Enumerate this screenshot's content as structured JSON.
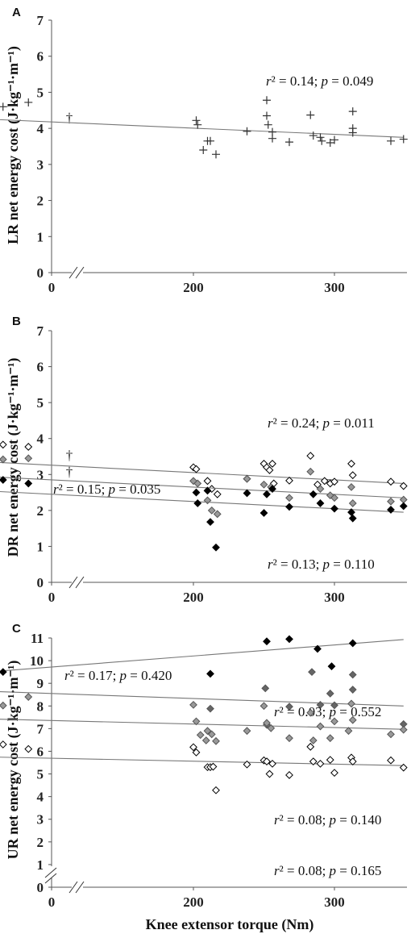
{
  "chart_data": [
    {
      "panel": "A",
      "type": "scatter",
      "ylabel": "LR net energy cost (J·kg⁻¹·m⁻¹)",
      "xlabel": "",
      "xlim": [
        0,
        350
      ],
      "ylim": [
        0,
        7
      ],
      "x_ticks": [
        "0",
        "200",
        "300"
      ],
      "y_ticks": [
        "0",
        "1",
        "2",
        "3",
        "4",
        "5",
        "6",
        "7"
      ],
      "outlier_marker": "†",
      "outlier_y": [
        4.3
      ],
      "series": [
        {
          "marker": "plus",
          "color": "#333333",
          "points": [
            [
              40,
              4.13
            ],
            [
              55,
              4.57
            ],
            [
              57,
              4.28
            ],
            [
              65,
              4.6
            ],
            [
              83,
              4.72
            ],
            [
              202,
              4.22
            ],
            [
              203,
              4.1
            ],
            [
              207,
              3.4
            ],
            [
              210,
              3.65
            ],
            [
              212,
              3.65
            ],
            [
              216,
              3.28
            ],
            [
              238,
              3.92
            ],
            [
              252,
              4.78
            ],
            [
              252,
              4.35
            ],
            [
              253,
              4.1
            ],
            [
              256,
              3.9
            ],
            [
              256,
              3.72
            ],
            [
              268,
              3.62
            ],
            [
              283,
              4.37
            ],
            [
              285,
              3.8
            ],
            [
              290,
              3.75
            ],
            [
              291,
              3.65
            ],
            [
              297,
              3.6
            ],
            [
              300,
              3.68
            ],
            [
              313,
              4.47
            ],
            [
              313,
              4.0
            ],
            [
              313,
              3.88
            ],
            [
              340,
              3.65
            ],
            [
              349,
              3.7
            ]
          ],
          "trend": [
            [
              40,
              4.28
            ],
            [
              349,
              3.75
            ]
          ],
          "annotation": {
            "r2": "0.14",
            "p": "0.049"
          }
        }
      ]
    },
    {
      "panel": "B",
      "type": "scatter",
      "ylabel": "DR net energy cost (J·kg⁻¹·m⁻¹)",
      "xlabel": "",
      "xlim": [
        0,
        350
      ],
      "ylim": [
        0,
        7
      ],
      "x_ticks": [
        "0",
        "200",
        "300"
      ],
      "y_ticks": [
        "0",
        "1",
        "2",
        "3",
        "4",
        "5",
        "6",
        "7"
      ],
      "outlier_marker": "†",
      "outlier_y": [
        3.55,
        3.08
      ],
      "series": [
        {
          "marker": "diamond-open",
          "color": "#000000",
          "points": [
            [
              40,
              3.18
            ],
            [
              53,
              3.63
            ],
            [
              57,
              3.25
            ],
            [
              65,
              3.83
            ],
            [
              83,
              3.77
            ],
            [
              200,
              3.2
            ],
            [
              202,
              3.15
            ],
            [
              210,
              2.82
            ],
            [
              213,
              2.6
            ],
            [
              217,
              2.45
            ],
            [
              238,
              2.88
            ],
            [
              250,
              3.3
            ],
            [
              252,
              3.2
            ],
            [
              254,
              3.12
            ],
            [
              256,
              3.3
            ],
            [
              257,
              2.75
            ],
            [
              268,
              2.83
            ],
            [
              283,
              3.52
            ],
            [
              288,
              2.72
            ],
            [
              293,
              2.82
            ],
            [
              297,
              2.75
            ],
            [
              300,
              2.8
            ],
            [
              312,
              3.3
            ],
            [
              313,
              2.98
            ],
            [
              340,
              2.8
            ],
            [
              349,
              2.68
            ]
          ],
          "trend": [
            [
              40,
              3.38
            ],
            [
              349,
              2.75
            ]
          ],
          "annotation": {
            "r2": "0.24",
            "p": "0.011"
          }
        },
        {
          "marker": "diamond-filled",
          "color": "#999999",
          "points": [
            [
              40,
              3.1
            ],
            [
              53,
              3.0
            ],
            [
              57,
              2.6
            ],
            [
              65,
              3.42
            ],
            [
              83,
              3.45
            ],
            [
              200,
              2.82
            ],
            [
              203,
              2.75
            ],
            [
              210,
              2.28
            ],
            [
              213,
              2.0
            ],
            [
              217,
              1.9
            ],
            [
              238,
              2.88
            ],
            [
              250,
              2.72
            ],
            [
              255,
              2.65
            ],
            [
              268,
              2.35
            ],
            [
              283,
              3.08
            ],
            [
              290,
              2.6
            ],
            [
              297,
              2.42
            ],
            [
              300,
              2.35
            ],
            [
              312,
              2.65
            ],
            [
              313,
              2.2
            ],
            [
              340,
              2.25
            ],
            [
              349,
              2.3
            ]
          ],
          "trend": [
            [
              40,
              2.97
            ],
            [
              349,
              2.35
            ]
          ],
          "annotation": {
            "r2": "0.15",
            "p": "0.035"
          }
        },
        {
          "marker": "diamond-filled",
          "color": "#000000",
          "points": [
            [
              40,
              2.7
            ],
            [
              65,
              2.85
            ],
            [
              83,
              2.75
            ],
            [
              202,
              2.5
            ],
            [
              203,
              2.2
            ],
            [
              210,
              2.55
            ],
            [
              212,
              1.68
            ],
            [
              216,
              0.97
            ],
            [
              238,
              2.48
            ],
            [
              250,
              1.93
            ],
            [
              252,
              2.45
            ],
            [
              256,
              2.6
            ],
            [
              268,
              2.1
            ],
            [
              285,
              2.45
            ],
            [
              290,
              2.2
            ],
            [
              300,
              2.05
            ],
            [
              312,
              1.95
            ],
            [
              313,
              1.78
            ],
            [
              340,
              2.02
            ],
            [
              349,
              2.12
            ]
          ],
          "trend": [
            [
              40,
              2.57
            ],
            [
              349,
              1.95
            ]
          ],
          "annotation": {
            "r2": "0.13",
            "p": "0.110"
          }
        }
      ]
    },
    {
      "panel": "C",
      "type": "scatter",
      "ylabel": "UR net energy cost (J·kg⁻¹·m⁻¹)",
      "xlabel": "Knee extensor torque (Nm)",
      "xlim": [
        0,
        350
      ],
      "ylim": [
        0,
        11
      ],
      "x_ticks": [
        "0",
        "200",
        "300"
      ],
      "y_ticks": [
        "0",
        "1",
        "2",
        "3",
        "4",
        "5",
        "6",
        "7",
        "8",
        "9",
        "10",
        "11"
      ],
      "series": [
        {
          "marker": "diamond-filled",
          "color": "#000000",
          "points": [
            [
              40,
              9.58
            ],
            [
              65,
              9.5
            ],
            [
              212,
              9.42
            ],
            [
              252,
              10.85
            ],
            [
              268,
              10.95
            ],
            [
              288,
              10.52
            ],
            [
              298,
              9.75
            ],
            [
              313,
              10.77
            ]
          ],
          "trend": [
            [
              40,
              9.43
            ],
            [
              349,
              10.93
            ]
          ],
          "annotation": {
            "r2": "0.17",
            "p": "0.420"
          }
        },
        {
          "marker": "diamond-filled",
          "color": "#666666",
          "points": [
            [
              212,
              7.88
            ],
            [
              251,
              8.78
            ],
            [
              252,
              7.17
            ],
            [
              268,
              7.97
            ],
            [
              284,
              9.5
            ],
            [
              290,
              8.05
            ],
            [
              297,
              8.55
            ],
            [
              300,
              8.03
            ],
            [
              313,
              9.38
            ],
            [
              313,
              8.72
            ],
            [
              349,
              7.2
            ]
          ],
          "trend": [
            [
              40,
              8.68
            ],
            [
              349,
              8.0
            ]
          ],
          "annotation": {
            "r2": "0.03",
            "p": "0.552"
          }
        },
        {
          "marker": "diamond-filled",
          "color": "#999999",
          "points": [
            [
              40,
              7.3
            ],
            [
              53,
              7.1
            ],
            [
              57,
              7.28
            ],
            [
              65,
              8.02
            ],
            [
              83,
              8.4
            ],
            [
              200,
              8.05
            ],
            [
              202,
              7.32
            ],
            [
              205,
              6.72
            ],
            [
              209,
              6.48
            ],
            [
              210,
              6.9
            ],
            [
              213,
              6.75
            ],
            [
              216,
              6.45
            ],
            [
              238,
              6.9
            ],
            [
              250,
              8.0
            ],
            [
              252,
              7.25
            ],
            [
              255,
              7.02
            ],
            [
              268,
              6.58
            ],
            [
              283,
              7.7
            ],
            [
              285,
              6.48
            ],
            [
              290,
              7.1
            ],
            [
              297,
              6.58
            ],
            [
              300,
              7.32
            ],
            [
              310,
              6.9
            ],
            [
              312,
              8.1
            ],
            [
              313,
              7.38
            ],
            [
              340,
              6.75
            ],
            [
              349,
              6.95
            ]
          ],
          "trend": [
            [
              40,
              7.45
            ],
            [
              349,
              6.97
            ]
          ],
          "annotation": {
            "r2": "0.08",
            "p": "0.140"
          }
        },
        {
          "marker": "diamond-open",
          "color": "#000000",
          "points": [
            [
              40,
              5.83
            ],
            [
              53,
              5.65
            ],
            [
              57,
              5.88
            ],
            [
              65,
              6.3
            ],
            [
              83,
              6.1
            ],
            [
              200,
              6.18
            ],
            [
              202,
              5.95
            ],
            [
              210,
              5.3
            ],
            [
              212,
              5.3
            ],
            [
              214,
              5.32
            ],
            [
              216,
              4.28
            ],
            [
              238,
              5.42
            ],
            [
              250,
              5.6
            ],
            [
              252,
              5.55
            ],
            [
              254,
              5.0
            ],
            [
              256,
              5.45
            ],
            [
              268,
              4.95
            ],
            [
              283,
              6.2
            ],
            [
              285,
              5.55
            ],
            [
              290,
              5.45
            ],
            [
              297,
              5.62
            ],
            [
              300,
              5.05
            ],
            [
              312,
              5.72
            ],
            [
              313,
              5.55
            ],
            [
              340,
              5.6
            ],
            [
              349,
              5.28
            ]
          ],
          "trend": [
            [
              40,
              5.77
            ],
            [
              349,
              5.37
            ]
          ],
          "annotation": {
            "r2": "0.08",
            "p": "0.165"
          }
        }
      ]
    }
  ]
}
